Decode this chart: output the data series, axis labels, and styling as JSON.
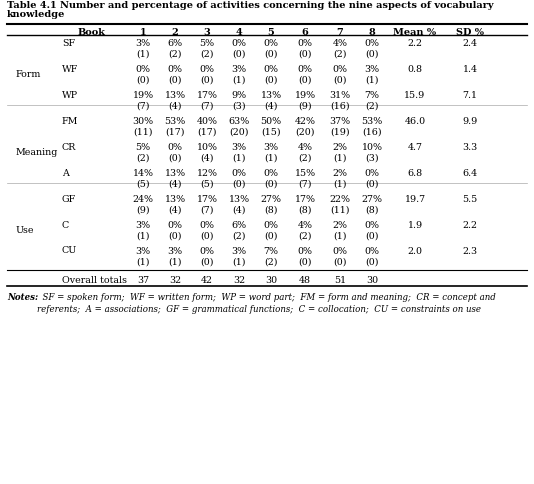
{
  "title_line1": "Table 4.1 Number and percentage of activities concerning the nine aspects of vocabulary",
  "title_line2": "knowledge",
  "col_headers": [
    "Book",
    "1",
    "2",
    "3",
    "4",
    "5",
    "6",
    "7",
    "8",
    "Mean %",
    "SD %"
  ],
  "rows": [
    {
      "subcat": "SF",
      "pct": [
        "3%",
        "6%",
        "5%",
        "0%",
        "0%",
        "0%",
        "4%",
        "0%"
      ],
      "num": [
        "(1)",
        "(2)",
        "(2)",
        "(0)",
        "(0)",
        "(0)",
        "(2)",
        "(0)"
      ],
      "mean": "2.2",
      "sd": "2.4"
    },
    {
      "subcat": "WF",
      "pct": [
        "0%",
        "0%",
        "0%",
        "3%",
        "0%",
        "0%",
        "0%",
        "3%"
      ],
      "num": [
        "(0)",
        "(0)",
        "(0)",
        "(1)",
        "(0)",
        "(0)",
        "(0)",
        "(1)"
      ],
      "mean": "0.8",
      "sd": "1.4"
    },
    {
      "subcat": "WP",
      "pct": [
        "19%",
        "13%",
        "17%",
        "9%",
        "13%",
        "19%",
        "31%",
        "7%"
      ],
      "num": [
        "(7)",
        "(4)",
        "(7)",
        "(3)",
        "(4)",
        "(9)",
        "(16)",
        "(2)"
      ],
      "mean": "15.9",
      "sd": "7.1"
    },
    {
      "subcat": "FM",
      "pct": [
        "30%",
        "53%",
        "40%",
        "63%",
        "50%",
        "42%",
        "37%",
        "53%"
      ],
      "num": [
        "(11)",
        "(17)",
        "(17)",
        "(20)",
        "(15)",
        "(20)",
        "(19)",
        "(16)"
      ],
      "mean": "46.0",
      "sd": "9.9"
    },
    {
      "subcat": "CR",
      "pct": [
        "5%",
        "0%",
        "10%",
        "3%",
        "3%",
        "4%",
        "2%",
        "10%"
      ],
      "num": [
        "(2)",
        "(0)",
        "(4)",
        "(1)",
        "(1)",
        "(2)",
        "(1)",
        "(3)"
      ],
      "mean": "4.7",
      "sd": "3.3"
    },
    {
      "subcat": "A",
      "pct": [
        "14%",
        "13%",
        "12%",
        "0%",
        "0%",
        "15%",
        "2%",
        "0%"
      ],
      "num": [
        "(5)",
        "(4)",
        "(5)",
        "(0)",
        "(0)",
        "(7)",
        "(1)",
        "(0)"
      ],
      "mean": "6.8",
      "sd": "6.4"
    },
    {
      "subcat": "GF",
      "pct": [
        "24%",
        "13%",
        "17%",
        "13%",
        "27%",
        "17%",
        "22%",
        "27%"
      ],
      "num": [
        "(9)",
        "(4)",
        "(7)",
        "(4)",
        "(8)",
        "(8)",
        "(11)",
        "(8)"
      ],
      "mean": "19.7",
      "sd": "5.5"
    },
    {
      "subcat": "C",
      "pct": [
        "3%",
        "0%",
        "0%",
        "6%",
        "0%",
        "4%",
        "2%",
        "0%"
      ],
      "num": [
        "(1)",
        "(0)",
        "(0)",
        "(2)",
        "(0)",
        "(2)",
        "(1)",
        "(0)"
      ],
      "mean": "1.9",
      "sd": "2.2"
    },
    {
      "subcat": "CU",
      "pct": [
        "3%",
        "3%",
        "0%",
        "3%",
        "7%",
        "0%",
        "0%",
        "0%"
      ],
      "num": [
        "(1)",
        "(1)",
        "(0)",
        "(1)",
        "(2)",
        "(0)",
        "(0)",
        "(0)"
      ],
      "mean": "2.0",
      "sd": "2.3"
    }
  ],
  "cat_labels": [
    {
      "name": "Form",
      "rows": [
        0,
        1,
        2
      ]
    },
    {
      "name": "Meaning",
      "rows": [
        3,
        4,
        5
      ]
    },
    {
      "name": "Use",
      "rows": [
        6,
        7,
        8
      ]
    }
  ],
  "overall_totals": [
    "37",
    "32",
    "42",
    "32",
    "30",
    "48",
    "51",
    "30"
  ],
  "notes_italic": "Notes:",
  "notes_regular": "  SF = spoken form;  WF = written form;  WP = word part;  FM = form and meaning;  CR = concept and\nreferents;  A = associations;  GF = grammatical functions;  C = collocation;  CU = constraints on use",
  "bg_color": "#ffffff",
  "text_color": "#000000"
}
